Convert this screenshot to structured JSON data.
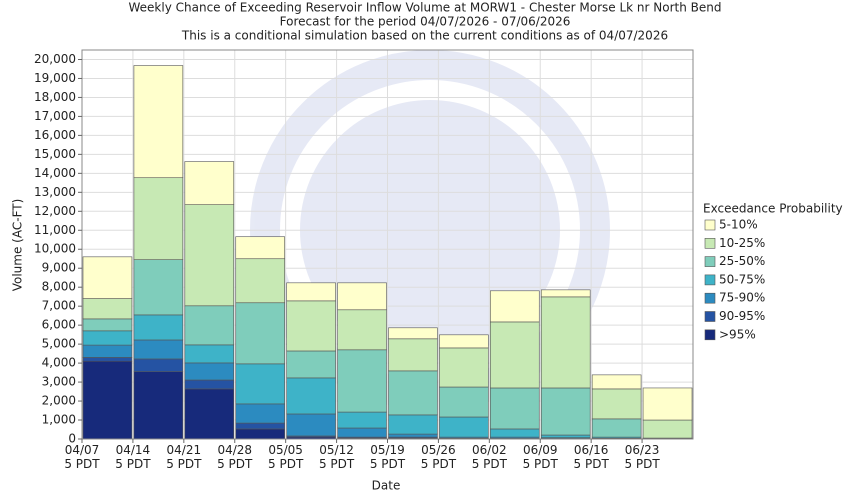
{
  "chart_data": {
    "type": "stacked_bar",
    "title": "Weekly Chance of Exceeding Reservoir Inflow Volume at MORW1 - Chester Morse Lk nr North Bend",
    "subtitle": [
      "Forecast for the period 04/07/2026 - 07/06/2026",
      "This is a conditional simulation based on the current conditions as of 04/07/2026"
    ],
    "x_label": "Date",
    "y_label": "Volume (AC-FT)",
    "legend_title": "Exceedance Probability",
    "legend": "right",
    "grid": true,
    "categories": [
      "04/07\n5 PDT",
      "04/14\n5 PDT",
      "04/21\n5 PDT",
      "04/28\n5 PDT",
      "05/05\n5 PDT",
      "05/12\n5 PDT",
      "05/19\n5 PDT",
      "05/26\n5 PDT",
      "06/02\n5 PDT",
      "06/09\n5 PDT",
      "06/16\n5 PDT",
      "06/23\n5 PDT"
    ],
    "series": [
      {
        "name": ">95%",
        "color": "#172a7b",
        "values": [
          4100,
          3550,
          2640,
          530,
          100,
          50,
          50,
          20,
          10,
          10,
          5,
          0
        ]
      },
      {
        "name": "90-95%",
        "color": "#2553a3",
        "values": [
          200,
          670,
          470,
          310,
          60,
          50,
          50,
          20,
          20,
          20,
          10,
          5
        ]
      },
      {
        "name": "75-90%",
        "color": "#2c8bc0",
        "values": [
          650,
          1000,
          900,
          1010,
          1160,
          480,
          160,
          60,
          70,
          40,
          25,
          10
        ]
      },
      {
        "name": "50-75%",
        "color": "#3eb3c8",
        "values": [
          750,
          1320,
          950,
          2110,
          1900,
          840,
          1010,
          1060,
          430,
          140,
          60,
          25
        ]
      },
      {
        "name": "25-50%",
        "color": "#7fcdbb",
        "values": [
          630,
          2910,
          2060,
          3220,
          1420,
          3280,
          2320,
          1580,
          2160,
          2480,
          960,
          10
        ]
      },
      {
        "name": "10-25%",
        "color": "#c7e9b4",
        "values": [
          1070,
          4320,
          5330,
          2320,
          2640,
          2110,
          1690,
          2060,
          3480,
          4800,
          1580,
          950
        ]
      },
      {
        "name": "5-10%",
        "color": "#ffffcc",
        "values": [
          2200,
          5910,
          2270,
          1160,
          950,
          1420,
          580,
          690,
          1640,
          370,
          740,
          1690
        ]
      }
    ],
    "ylim": [
      0,
      20500
    ],
    "yticks": [
      0,
      {
        "value": 1000,
        "label": "1,000"
      },
      {
        "value": 2000,
        "label": "2,000"
      },
      {
        "value": 3000,
        "label": "3,000"
      },
      {
        "value": 4000,
        "label": "4,000"
      },
      {
        "value": 5000,
        "label": "5,000"
      },
      {
        "value": 6000,
        "label": "6,000"
      },
      {
        "value": 7000,
        "label": "7,000"
      },
      {
        "value": 8000,
        "label": "8,000"
      },
      {
        "value": 9000,
        "label": "9,000"
      },
      {
        "value": 10000,
        "label": "10,000"
      },
      {
        "value": 11000,
        "label": "11,000"
      },
      {
        "value": 12000,
        "label": "12,000"
      },
      {
        "value": 13000,
        "label": "13,000"
      },
      {
        "value": 14000,
        "label": "14,000"
      },
      {
        "value": 15000,
        "label": "15,000"
      },
      {
        "value": 16000,
        "label": "16,000"
      },
      {
        "value": 17000,
        "label": "17,000"
      },
      {
        "value": 18000,
        "label": "18,000"
      },
      {
        "value": 19000,
        "label": "19,000"
      },
      {
        "value": 20000,
        "label": "20,000"
      }
    ]
  }
}
